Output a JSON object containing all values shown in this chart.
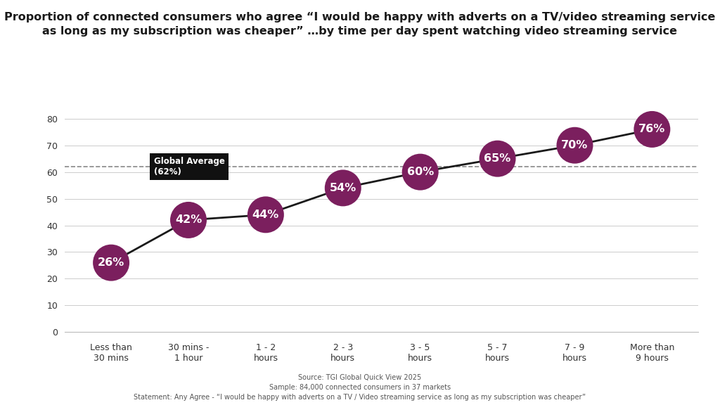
{
  "categories": [
    "Less than\n30 mins",
    "30 mins -\n1 hour",
    "1 - 2\nhours",
    "2 - 3\nhours",
    "3 - 5\nhours",
    "5 - 7\nhours",
    "7 - 9\nhours",
    "More than\n9 hours"
  ],
  "values": [
    26,
    42,
    44,
    54,
    60,
    65,
    70,
    76
  ],
  "global_average": 62,
  "dot_color": "#7B1F5E",
  "line_color": "#1a1a1a",
  "average_line_color": "#888888",
  "title_line1": "Proportion of connected consumers who agree “I would be happy with adverts on a TV/video streaming service",
  "title_line2": "as long as my subscription was cheaper” …by time per day spent watching video streaming service",
  "footer_line1": "Source: TGI Global Quick View 2025",
  "footer_line2": "Sample: 84,000 connected consumers in 37 markets",
  "footer_line3": "Statement: Any Agree - “I would be happy with adverts on a TV / Video streaming service as long as my subscription was cheaper”",
  "ylim": [
    0,
    85
  ],
  "yticks": [
    0,
    10,
    20,
    30,
    40,
    50,
    60,
    70,
    80
  ],
  "background_color": "#ffffff",
  "marker_size": 1400,
  "annotation_fontsize": 11.5,
  "title_fontsize": 11.5,
  "tick_fontsize": 9,
  "footer_fontsize": 7,
  "global_avg_label": "Global Average\n(62%)",
  "global_avg_fontsize": 8.5,
  "label_box_color": "#111111"
}
